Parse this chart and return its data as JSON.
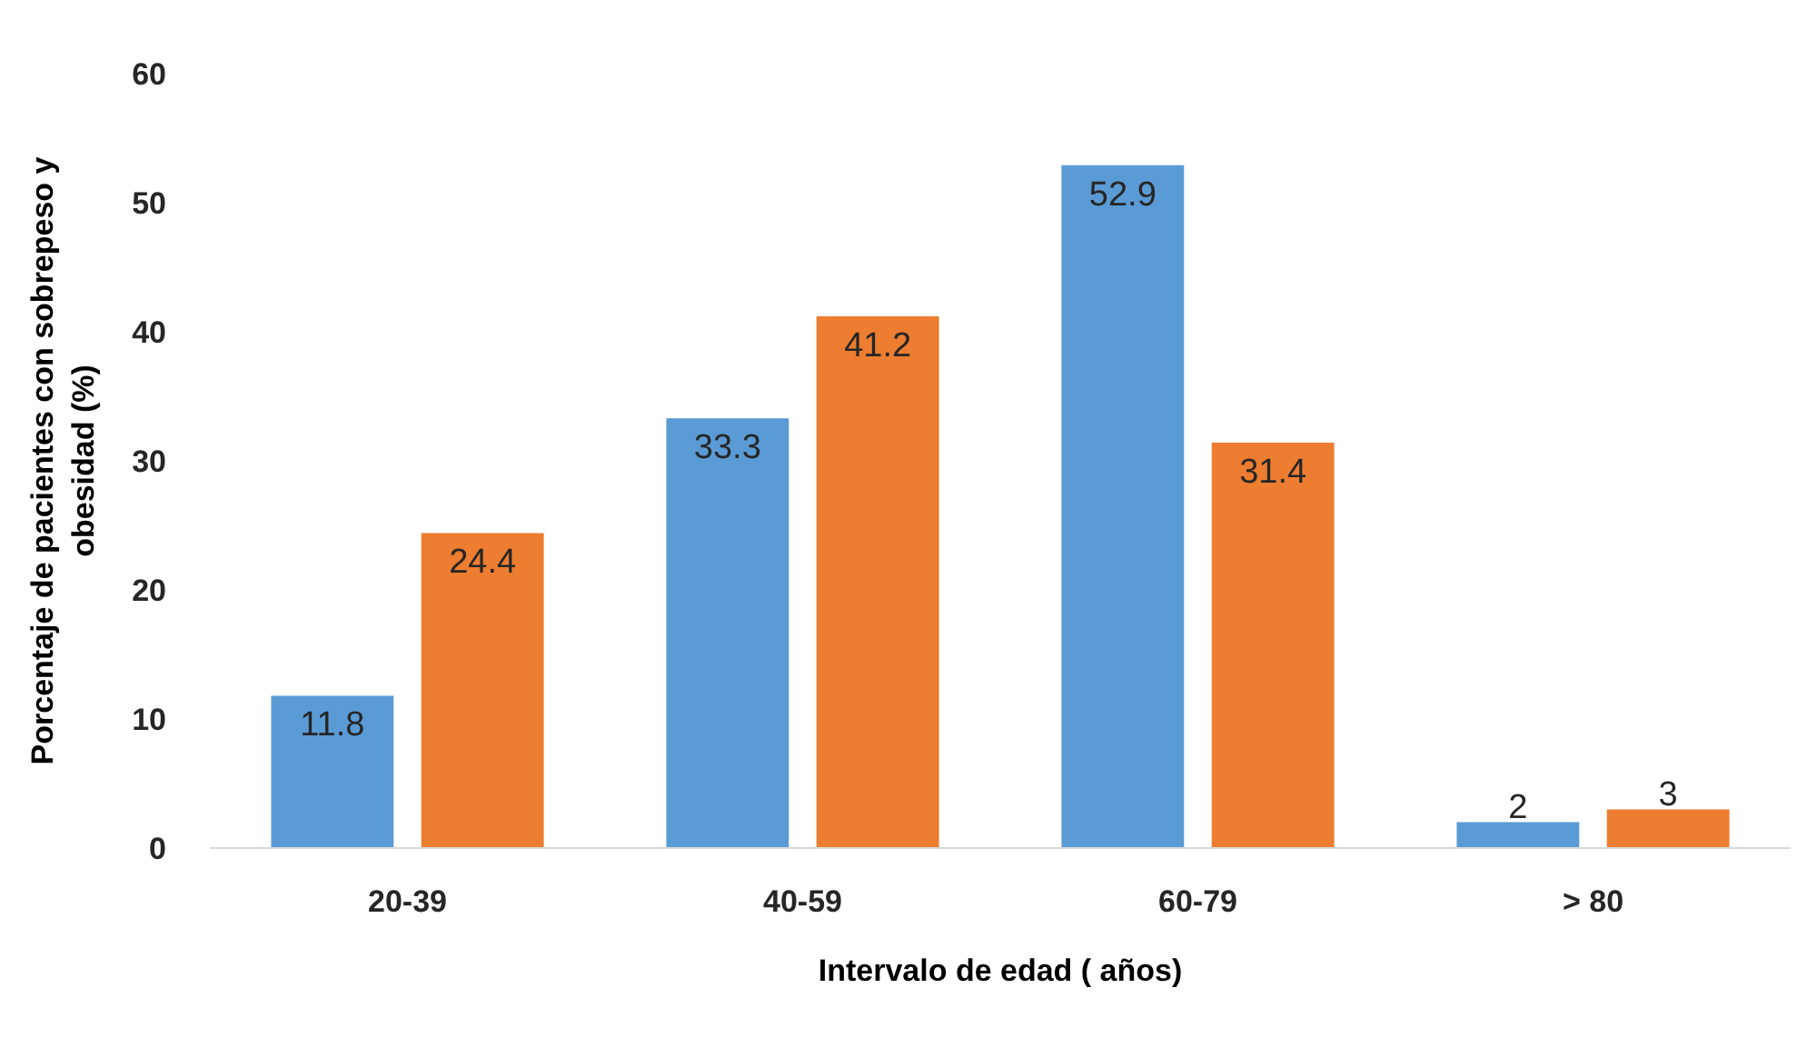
{
  "chart_data": {
    "type": "bar",
    "xlabel": "Intervalo de edad ( años)",
    "ylabel": "Porcentaje de pacientes con sobrepeso y obesidad (%)",
    "categories": [
      "20-39",
      "40-59",
      "60-79",
      "> 80"
    ],
    "series": [
      {
        "color": "#5b9bd5",
        "values": [
          11.8,
          33.3,
          52.9,
          2
        ]
      },
      {
        "color": "#ed7d31",
        "values": [
          24.4,
          41.2,
          31.4,
          3
        ]
      }
    ],
    "ylim": [
      0,
      60
    ],
    "yticks": [
      0,
      10,
      20,
      30,
      40,
      50,
      60
    ],
    "grid": false,
    "data_labels": true
  }
}
